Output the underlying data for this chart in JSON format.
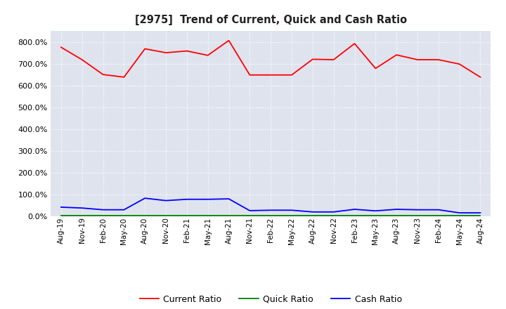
{
  "title": "[2975]  Trend of Current, Quick and Cash Ratio",
  "x_labels": [
    "Aug-19",
    "Nov-19",
    "Feb-20",
    "May-20",
    "Aug-20",
    "Nov-20",
    "Feb-21",
    "May-21",
    "Aug-21",
    "Nov-21",
    "Feb-22",
    "May-22",
    "Aug-22",
    "Nov-22",
    "Feb-23",
    "May-23",
    "Aug-23",
    "Nov-23",
    "Feb-24",
    "May-24",
    "Aug-24"
  ],
  "current_ratio": [
    775,
    718,
    650,
    638,
    768,
    750,
    758,
    738,
    806,
    648,
    648,
    648,
    720,
    718,
    792,
    678,
    740,
    718,
    718,
    698,
    638
  ],
  "quick_ratio": [
    3,
    3,
    3,
    3,
    3,
    3,
    3,
    3,
    3,
    3,
    3,
    3,
    3,
    3,
    3,
    3,
    3,
    3,
    3,
    3,
    3
  ],
  "cash_ratio": [
    42,
    38,
    30,
    30,
    83,
    72,
    78,
    78,
    80,
    26,
    28,
    28,
    20,
    20,
    32,
    25,
    32,
    30,
    30,
    16,
    16
  ],
  "current_color": "#ff0000",
  "quick_color": "#008000",
  "cash_color": "#0000ff",
  "bg_color": "#ffffff",
  "plot_bg_color": "#dfe3ee",
  "grid_color": "#ffffff",
  "ylim": [
    0,
    850
  ],
  "yticks": [
    0,
    100,
    200,
    300,
    400,
    500,
    600,
    700,
    800
  ]
}
